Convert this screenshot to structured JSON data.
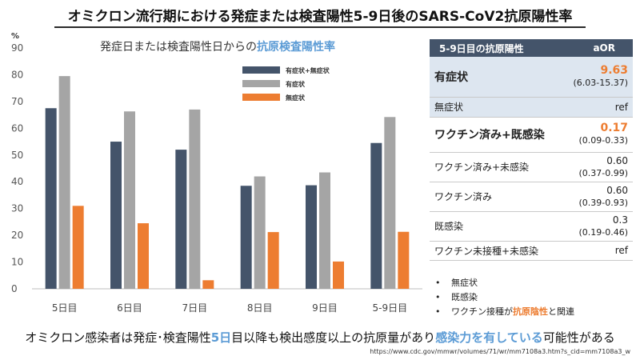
{
  "title": "オミクロン流行期における発症または検査陽性5-9日後のSARS-CoV2抗原陽性率",
  "chart_data": {
    "type": "bar",
    "title_prefix": "発症日または検査陽性日からの",
    "title_highlight": "抗原検査陽性率",
    "ylabel": "%",
    "ylim": [
      0,
      90
    ],
    "yticks": [
      0,
      10,
      20,
      30,
      40,
      50,
      60,
      70,
      80,
      90
    ],
    "categories": [
      "5日目",
      "6日目",
      "7日目",
      "8日目",
      "9日目",
      "5-9日目"
    ],
    "series": [
      {
        "name": "有症状+無症状",
        "color": "#44546a",
        "values": [
          67.5,
          55,
          52,
          38.5,
          38.7,
          54.5
        ]
      },
      {
        "name": "有症状",
        "color": "#a5a5a5",
        "values": [
          79.5,
          66.3,
          67,
          42,
          43.5,
          64.2
        ]
      },
      {
        "name": "無症状",
        "color": "#ed7d31",
        "values": [
          31,
          24.5,
          3.2,
          21.2,
          10.2,
          21.3
        ]
      }
    ],
    "legend_position": "top-right"
  },
  "table": {
    "header_label": "5-9日目の抗原陽性",
    "header_aor": "aOR",
    "rows": [
      {
        "label": "有症状",
        "aor": "9.63",
        "ci": "(6.03-15.37)",
        "shade": true,
        "strong": true,
        "highlight": true
      },
      {
        "label": "無症状",
        "aor": "ref",
        "ci": "",
        "shade": true,
        "strong": false,
        "highlight": false
      },
      {
        "label": "ワクチン済み+既感染",
        "aor": "0.17",
        "ci": "(0.09-0.33)",
        "shade": false,
        "strong": true,
        "highlight": true
      },
      {
        "label": "ワクチン済み+未感染",
        "aor": "0.60",
        "ci": "(0.37-0.99)",
        "shade": false,
        "strong": false,
        "highlight": false
      },
      {
        "label": "ワクチン済み",
        "aor": "0.60",
        "ci": "(0.39-0.93)",
        "shade": false,
        "strong": false,
        "highlight": false
      },
      {
        "label": "既感染",
        "aor": "0.3",
        "ci": "(0.19-0.46)",
        "shade": false,
        "strong": false,
        "highlight": false
      },
      {
        "label": "ワクチン未接種+未感染",
        "aor": "ref",
        "ci": "",
        "shade": false,
        "strong": false,
        "highlight": false
      }
    ]
  },
  "notes": {
    "bullet": "•",
    "item1": "無症状",
    "item2": "既感染",
    "item3_prefix": "ワクチン接種が",
    "item3_highlight": "抗原陰性",
    "item3_suffix": "と関連"
  },
  "conclusion": {
    "part1": "オミクロン感染者は発症･検査陽性",
    "hl1": "5日",
    "part2": "目以降も検出感度以上の抗原量があり",
    "hl2": "感染力を有している",
    "part3": "可能性がある"
  },
  "source": "https://www.cdc.gov/mmwr/volumes/71/wr/mm7108a3.htm?s_cid=mm7108a3_w"
}
